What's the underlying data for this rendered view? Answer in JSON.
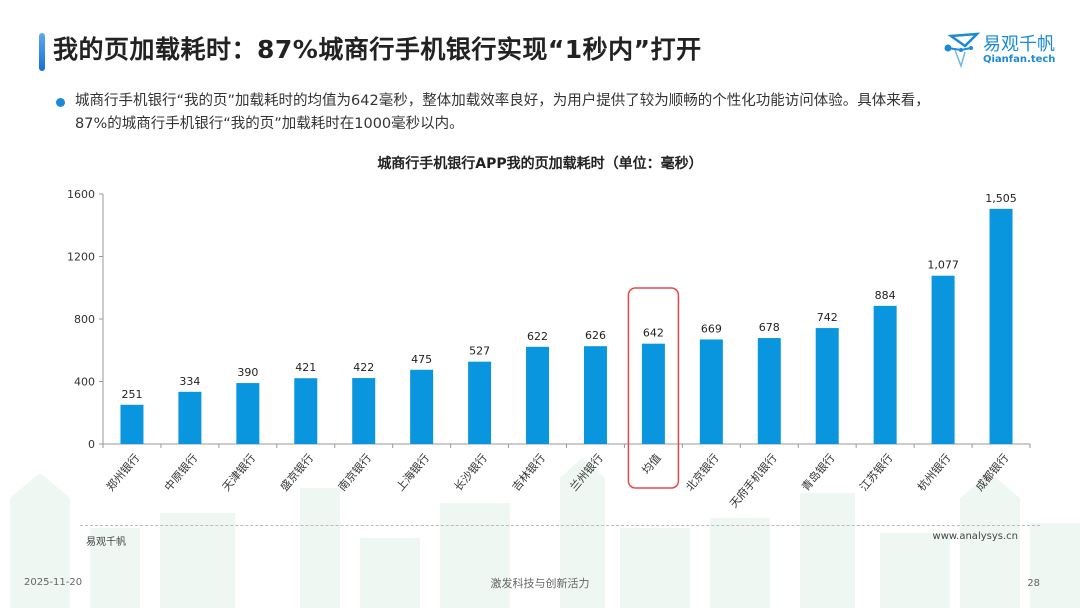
{
  "header": {
    "title": "我的页加载耗时：87%城商行手机银行实现“1秒内”打开",
    "logo_name": "易观千帆",
    "logo_sub": "Qianfan.tech"
  },
  "summary": {
    "line1": "城商行手机银行“我的页”加载耗时的均值为642毫秒，整体加载效率良好，为用户提供了较为顺畅的个性化功能访问体验。具体来看，",
    "line2": "87%的城商行手机银行“我的页”加载耗时在1000毫秒以内。"
  },
  "footer": {
    "source_left": "易观千帆",
    "source_right": "www.analysys.cn",
    "date": "2025-11-20",
    "slogan": "激发科技与创新活力",
    "page": "28"
  },
  "colors": {
    "bar": "#0a96df",
    "highlight_box": "#e8474c",
    "accent": "#1a8ad8"
  },
  "chart_data": {
    "type": "bar",
    "title": "城商行手机银行APP我的页加载耗时（单位：毫秒）",
    "xlabel": "",
    "ylabel": "",
    "ylim": [
      0,
      1600
    ],
    "yticks": [
      0,
      400,
      800,
      1200,
      1600
    ],
    "grid": false,
    "legend": null,
    "categories": [
      "郑州银行",
      "中原银行",
      "天津银行",
      "盛京银行",
      "南京银行",
      "上海银行",
      "长沙银行",
      "吉林银行",
      "兰州银行",
      "均值",
      "北京银行",
      "天府手机银行",
      "青岛银行",
      "江苏银行",
      "杭州银行",
      "成都银行"
    ],
    "values": [
      251,
      334,
      390,
      421,
      422,
      475,
      527,
      622,
      626,
      642,
      669,
      678,
      742,
      884,
      1077,
      1505
    ],
    "value_labels": [
      "251",
      "334",
      "390",
      "421",
      "422",
      "475",
      "527",
      "622",
      "626",
      "642",
      "669",
      "678",
      "742",
      "884",
      "1,077",
      "1,505"
    ],
    "highlighted_category": "均值"
  }
}
